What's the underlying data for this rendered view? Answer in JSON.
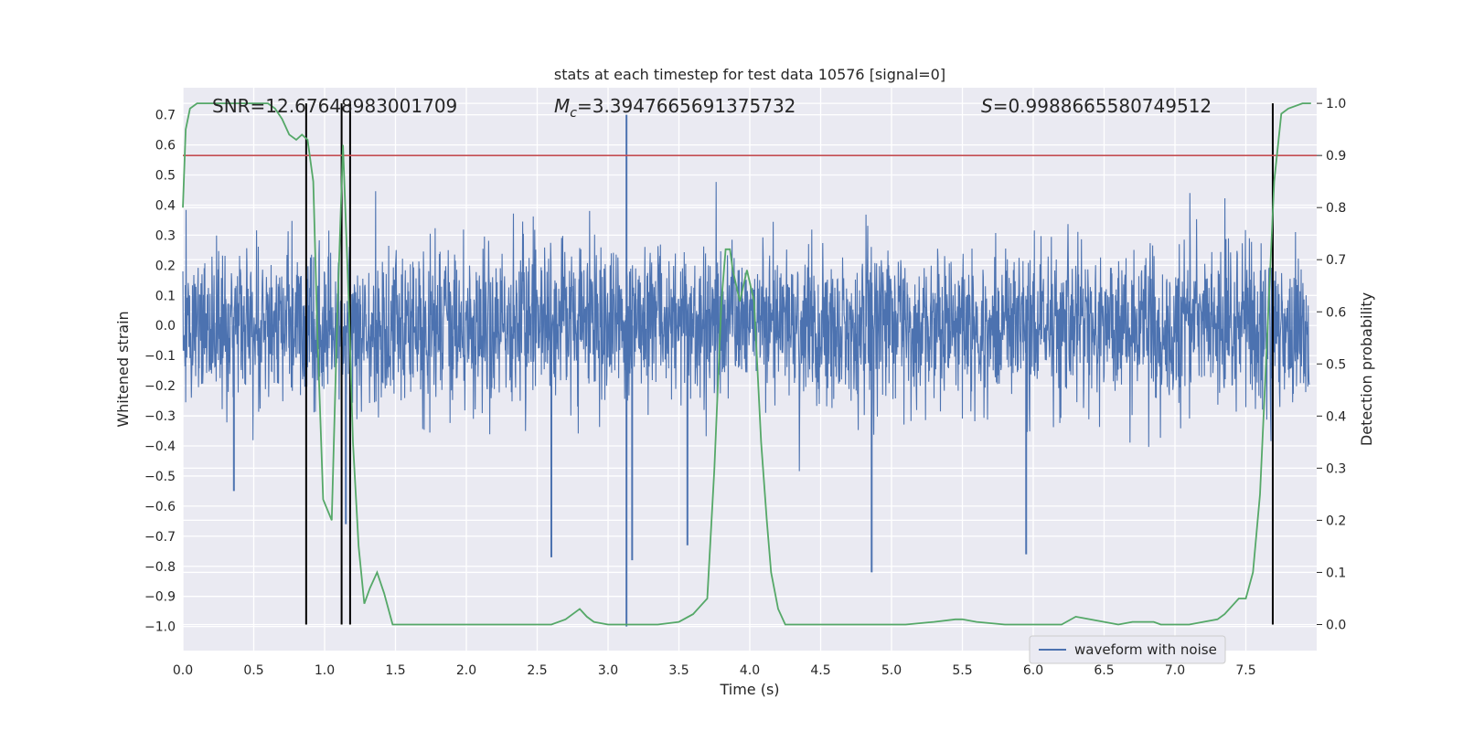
{
  "chart_data": {
    "type": "line",
    "title": "stats at each timestep for test data 10576 [signal=0]",
    "xlabel": "Time (s)",
    "ylabel_left": "Whitened strain",
    "ylabel_right": "Detection probability",
    "xlim": [
      0.0,
      8.0
    ],
    "ylim_left": [
      -1.08,
      0.79
    ],
    "ylim_right": [
      -0.05,
      1.03
    ],
    "x_ticks": [
      "0.0",
      "0.5",
      "1.0",
      "1.5",
      "2.0",
      "2.5",
      "3.0",
      "3.5",
      "4.0",
      "4.5",
      "5.0",
      "5.5",
      "6.0",
      "6.5",
      "7.0",
      "7.5"
    ],
    "y_ticks_left": [
      "0.7",
      "0.6",
      "0.5",
      "0.4",
      "0.3",
      "0.2",
      "0.1",
      "0.0",
      "−0.1",
      "−0.2",
      "−0.3",
      "−0.4",
      "−0.5",
      "−0.6",
      "−0.7",
      "−0.8",
      "−0.9",
      "−1.0"
    ],
    "y_ticks_right": [
      "1.0",
      "0.9",
      "0.8",
      "0.7",
      "0.6",
      "0.5",
      "0.4",
      "0.3",
      "0.2",
      "0.1",
      "0.0"
    ],
    "grid": true,
    "legend": {
      "position": "lower-right",
      "entries": [
        "waveform with noise"
      ]
    },
    "annotations": {
      "snr": "SNR=12.67648983001709",
      "mc_symbol": "M",
      "mc_sub": "c",
      "mc_value": "=3.3947665691375732",
      "s_symbol": "S",
      "s_value": "=0.9988665580749512"
    },
    "threshold": 0.9,
    "vertical_lines": [
      0.87,
      1.12,
      1.18,
      7.69
    ],
    "series": [
      {
        "name": "waveform with noise",
        "axis": "left",
        "kind": "noise",
        "sigma": 0.13,
        "envelope_max": 0.7,
        "envelope_min": -1.0,
        "spikes": [
          {
            "x": 3.13,
            "y": 0.7
          },
          {
            "x": 3.13,
            "y": -1.0
          },
          {
            "x": 3.17,
            "y": -0.78
          },
          {
            "x": 2.6,
            "y": -0.77
          },
          {
            "x": 4.86,
            "y": -0.82
          },
          {
            "x": 5.95,
            "y": -0.76
          },
          {
            "x": 3.56,
            "y": -0.73
          },
          {
            "x": 0.36,
            "y": -0.55
          },
          {
            "x": 1.15,
            "y": -0.66
          }
        ]
      },
      {
        "name": "detection probability",
        "axis": "right",
        "kind": "line",
        "x": [
          0.0,
          0.02,
          0.05,
          0.1,
          0.15,
          0.2,
          0.3,
          0.4,
          0.5,
          0.6,
          0.65,
          0.7,
          0.75,
          0.8,
          0.84,
          0.88,
          0.92,
          0.95,
          0.99,
          1.05,
          1.09,
          1.13,
          1.17,
          1.2,
          1.24,
          1.28,
          1.32,
          1.37,
          1.42,
          1.48,
          1.55,
          1.65,
          1.75,
          2.0,
          2.25,
          2.5,
          2.6,
          2.7,
          2.8,
          2.85,
          2.9,
          3.0,
          3.15,
          3.35,
          3.5,
          3.6,
          3.7,
          3.75,
          3.8,
          3.83,
          3.86,
          3.88,
          3.93,
          3.98,
          4.03,
          4.08,
          4.12,
          4.15,
          4.2,
          4.25,
          4.3,
          4.5,
          4.7,
          4.9,
          5.1,
          5.3,
          5.45,
          5.5,
          5.6,
          5.8,
          6.0,
          6.2,
          6.3,
          6.4,
          6.5,
          6.6,
          6.7,
          6.85,
          6.9,
          7.0,
          7.1,
          7.2,
          7.3,
          7.35,
          7.45,
          7.5,
          7.55,
          7.6,
          7.65,
          7.7,
          7.75,
          7.8,
          7.9,
          7.96
        ],
        "y": [
          0.8,
          0.95,
          0.99,
          1.0,
          1.0,
          1.0,
          1.0,
          1.0,
          1.0,
          1.0,
          0.99,
          0.97,
          0.94,
          0.93,
          0.94,
          0.93,
          0.85,
          0.55,
          0.24,
          0.2,
          0.6,
          0.92,
          0.62,
          0.35,
          0.15,
          0.04,
          0.07,
          0.1,
          0.06,
          0.0,
          0.0,
          0.0,
          0.0,
          0.0,
          0.0,
          0.0,
          0.0,
          0.01,
          0.03,
          0.015,
          0.005,
          0.0,
          0.0,
          0.0,
          0.005,
          0.02,
          0.05,
          0.3,
          0.62,
          0.72,
          0.72,
          0.68,
          0.62,
          0.68,
          0.62,
          0.35,
          0.2,
          0.1,
          0.03,
          0.0,
          0.0,
          0.0,
          0.0,
          0.0,
          0.0,
          0.005,
          0.01,
          0.01,
          0.005,
          0.0,
          0.0,
          0.0,
          0.015,
          0.01,
          0.005,
          0.0,
          0.005,
          0.005,
          0.0,
          0.0,
          0.0,
          0.005,
          0.01,
          0.02,
          0.05,
          0.05,
          0.1,
          0.25,
          0.55,
          0.85,
          0.98,
          0.99,
          1.0,
          1.0
        ]
      }
    ]
  }
}
